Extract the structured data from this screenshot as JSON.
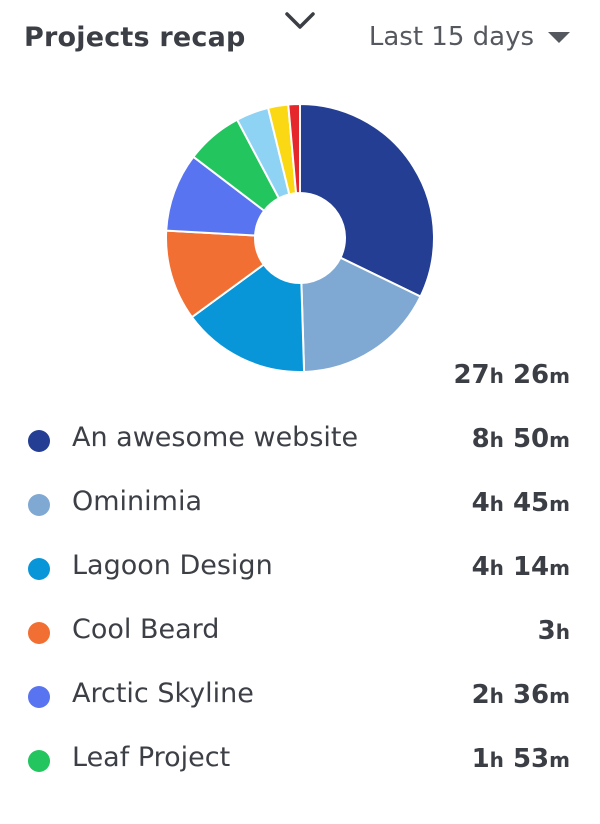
{
  "header": {
    "title": "Projects recap",
    "period": "Last 15 days"
  },
  "total": {
    "hours": "27",
    "h_unit": "h",
    "minutes": "26",
    "m_unit": "m"
  },
  "projects": [
    {
      "name": "An awesome website",
      "hours": "8",
      "minutes": "50",
      "color": "#233e93"
    },
    {
      "name": "Ominimia",
      "hours": "4",
      "minutes": "45",
      "color": "#7fa9d2"
    },
    {
      "name": "Lagoon Design",
      "hours": "4",
      "minutes": "14",
      "color": "#0996d9"
    },
    {
      "name": "Cool Beard",
      "hours": "3",
      "minutes": "",
      "color": "#f26f33"
    },
    {
      "name": "Arctic Skyline",
      "hours": "2",
      "minutes": "36",
      "color": "#5874f0"
    },
    {
      "name": "Leaf Project",
      "hours": "1",
      "minutes": "53",
      "color": "#22c55e"
    }
  ],
  "chart_data": {
    "type": "pie",
    "unit": "minutes",
    "categories": [
      "An awesome website",
      "Ominimia",
      "Lagoon Design",
      "Cool Beard",
      "Arctic Skyline",
      "Leaf Project",
      "",
      "",
      ""
    ],
    "values": [
      530,
      285,
      254,
      180,
      156,
      113,
      65,
      40,
      23
    ],
    "colors": [
      "#233e93",
      "#7fa9d2",
      "#0996d9",
      "#f26f33",
      "#5874f0",
      "#22c55e",
      "#8fd3f4",
      "#fbd814",
      "#e5262b"
    ]
  }
}
